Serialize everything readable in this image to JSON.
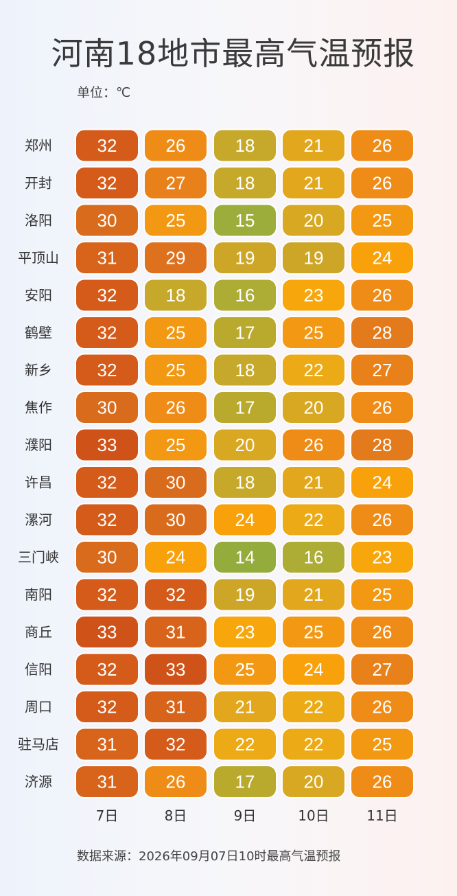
{
  "title": "河南18地市最高气温预报",
  "unit": "单位：℃",
  "source": "数据来源：2026年09月07日10时最高气温预报",
  "chart_data": {
    "type": "heatmap",
    "title": "河南18地市最高气温预报",
    "columns": [
      "7日",
      "8日",
      "9日",
      "10日",
      "11日"
    ],
    "rows": [
      "郑州",
      "开封",
      "洛阳",
      "平顶山",
      "安阳",
      "鹤壁",
      "新乡",
      "焦作",
      "濮阳",
      "许昌",
      "漯河",
      "三门峡",
      "南阳",
      "商丘",
      "信阳",
      "周口",
      "驻马店",
      "济源"
    ],
    "values": [
      [
        32,
        26,
        18,
        21,
        26
      ],
      [
        32,
        27,
        18,
        21,
        26
      ],
      [
        30,
        25,
        15,
        20,
        25
      ],
      [
        31,
        29,
        19,
        19,
        24
      ],
      [
        32,
        18,
        16,
        23,
        26
      ],
      [
        32,
        25,
        17,
        25,
        28
      ],
      [
        32,
        25,
        18,
        22,
        27
      ],
      [
        30,
        26,
        17,
        20,
        26
      ],
      [
        33,
        25,
        20,
        26,
        28
      ],
      [
        32,
        30,
        18,
        21,
        24
      ],
      [
        32,
        30,
        24,
        22,
        26
      ],
      [
        30,
        24,
        14,
        16,
        23
      ],
      [
        32,
        32,
        19,
        21,
        25
      ],
      [
        33,
        31,
        23,
        25,
        26
      ],
      [
        32,
        33,
        25,
        24,
        27
      ],
      [
        32,
        31,
        21,
        22,
        26
      ],
      [
        31,
        32,
        22,
        22,
        25
      ],
      [
        31,
        26,
        17,
        20,
        26
      ]
    ],
    "colors": {
      "14": "#94ac3c",
      "15": "#9cad3b",
      "16": "#adac34",
      "17": "#b9aa2e",
      "18": "#c6a92a",
      "19": "#cda628",
      "20": "#d9a822",
      "21": "#e2a71c",
      "22": "#ebaa16",
      "23": "#f7a70c",
      "24": "#f8a10a",
      "25": "#f39813",
      "26": "#ef8c17",
      "27": "#e9811a",
      "28": "#e37a1c",
      "29": "#de711e",
      "30": "#d96b1c",
      "31": "#d8641b",
      "32": "#d45b1a",
      "33": "#cf5218"
    }
  }
}
